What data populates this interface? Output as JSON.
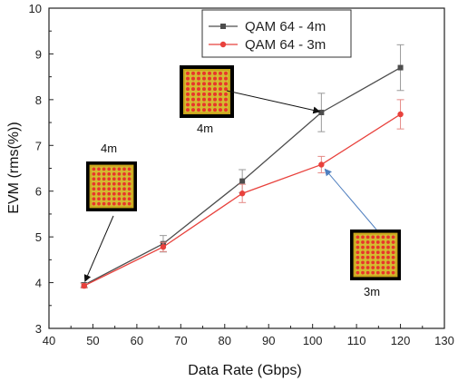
{
  "chart_data": {
    "type": "line",
    "title": "",
    "xlabel": "Data Rate (Gbps)",
    "ylabel": "EVM (rms(%))",
    "xlim": [
      40,
      130
    ],
    "ylim": [
      3,
      10
    ],
    "xticks": [
      40,
      50,
      60,
      70,
      80,
      90,
      100,
      110,
      120,
      130
    ],
    "yticks": [
      3,
      4,
      5,
      6,
      7,
      8,
      9,
      10
    ],
    "grid": false,
    "legend_position": "top-center",
    "series": [
      {
        "name": "QAM 64 - 4m",
        "color": "#4d4d4d",
        "marker": "square",
        "x": [
          48,
          66,
          84,
          102,
          120
        ],
        "y": [
          3.95,
          4.85,
          6.22,
          7.72,
          8.7
        ],
        "err": [
          0.05,
          0.18,
          0.25,
          0.42,
          0.5
        ]
      },
      {
        "name": "QAM 64 - 3m",
        "color": "#e8413c",
        "marker": "circle",
        "x": [
          48,
          66,
          84,
          102,
          120
        ],
        "y": [
          3.93,
          4.78,
          5.95,
          6.58,
          7.68
        ],
        "err": [
          0.05,
          0.1,
          0.2,
          0.18,
          0.32
        ]
      }
    ],
    "annotations": [
      {
        "label": "4m",
        "image": "constellation-image",
        "target": [
          102,
          7.72
        ],
        "arrow_color": "#111111"
      },
      {
        "label": "4m",
        "image": "constellation-image",
        "target": [
          48,
          3.95
        ],
        "arrow_color": "#111111"
      },
      {
        "label": "3m",
        "image": "constellation-image",
        "target": [
          102,
          6.58
        ],
        "arrow_color": "#4f7fbf"
      }
    ]
  }
}
